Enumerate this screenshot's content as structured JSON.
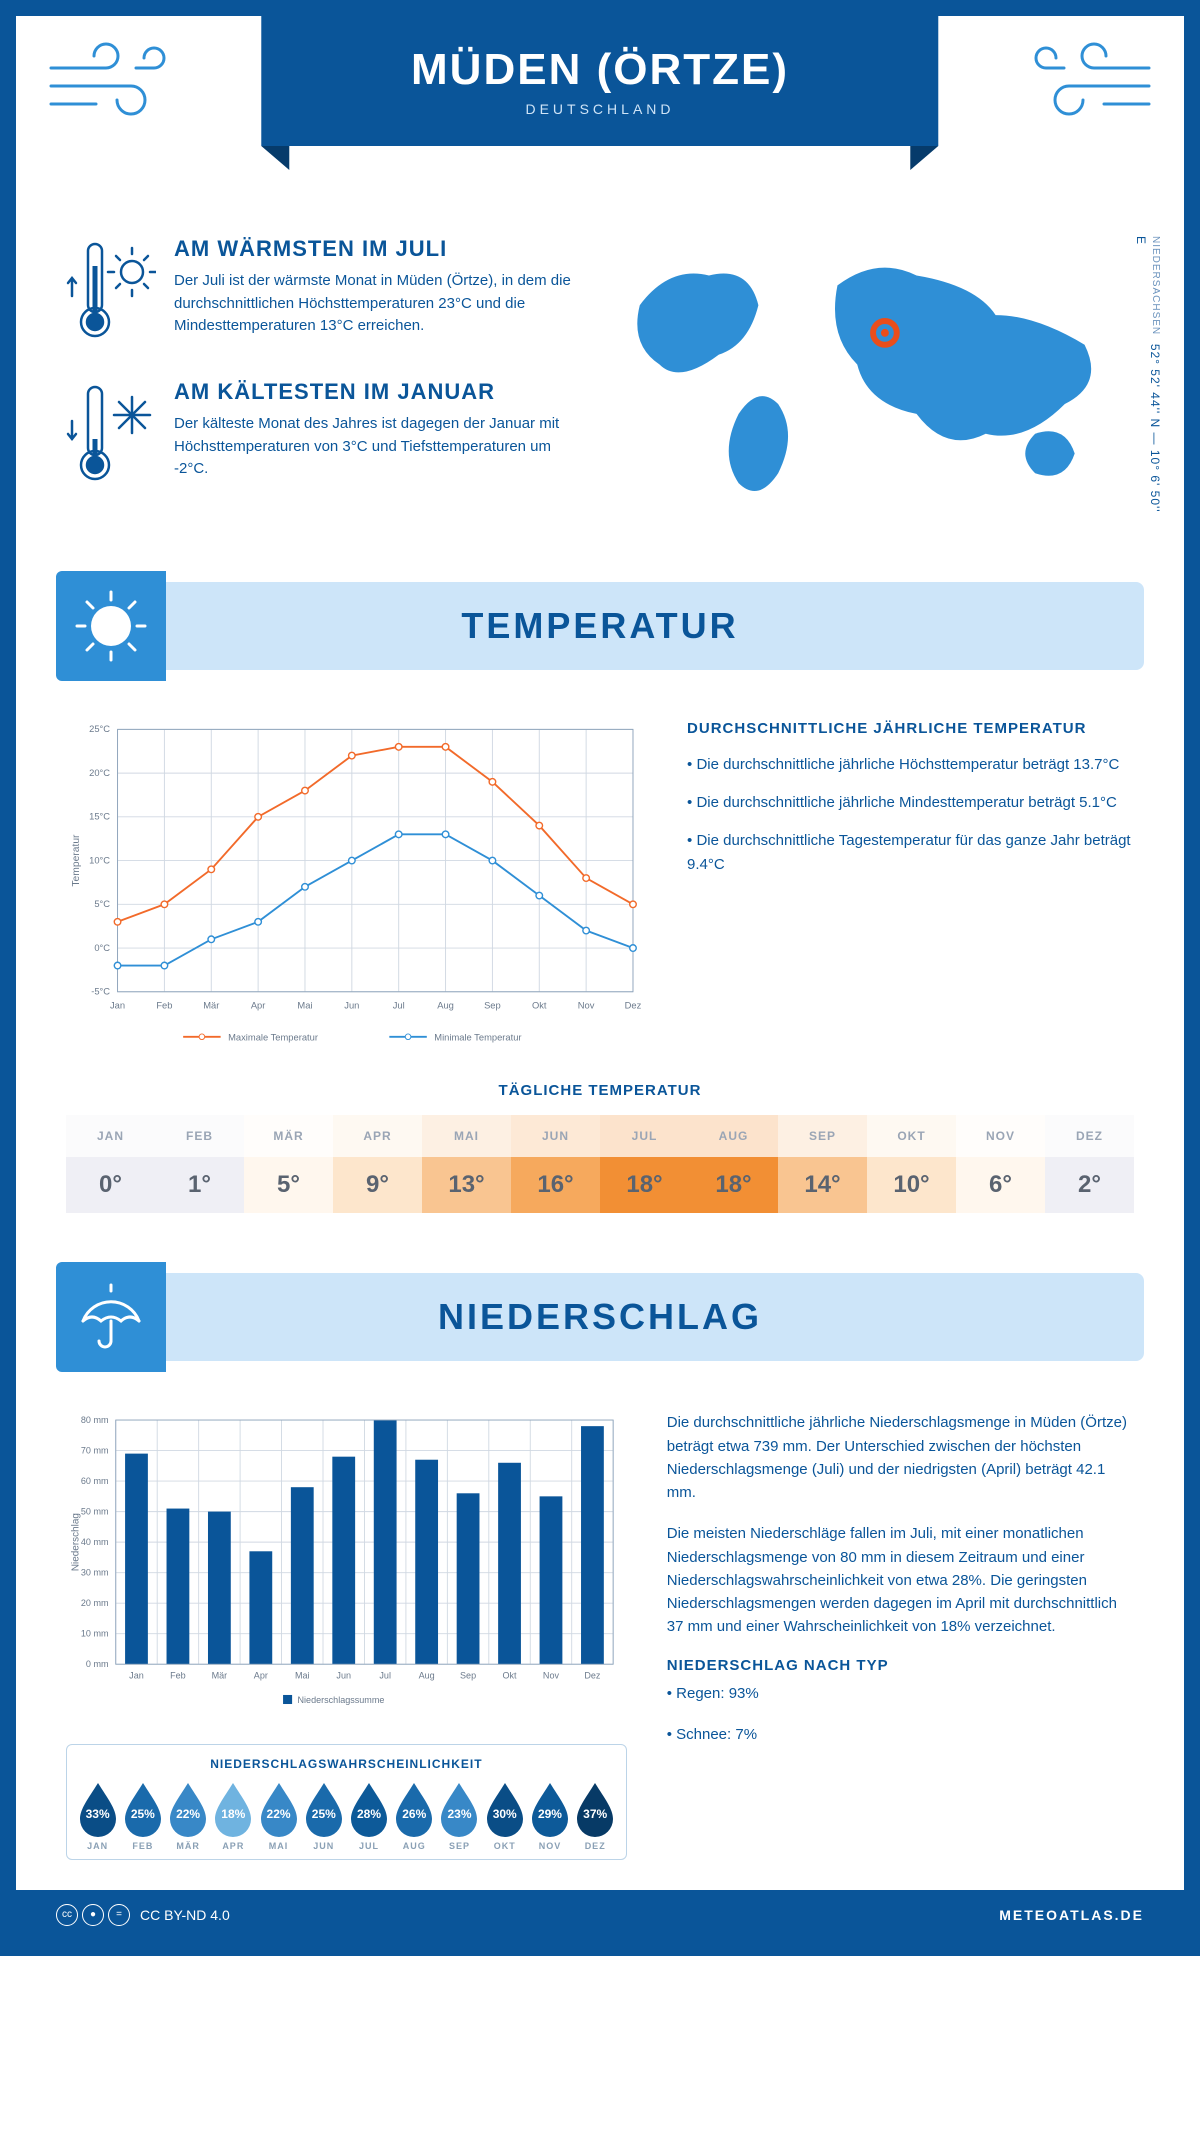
{
  "header": {
    "title": "MÜDEN (ÖRTZE)",
    "subtitle": "DEUTSCHLAND"
  },
  "location": {
    "coords": "52° 52' 44'' N — 10° 6' 50'' E",
    "region": "NIEDERSACHSEN",
    "marker_color": "#e94e1b",
    "land_color": "#2f8fd6"
  },
  "warmest": {
    "title": "AM WÄRMSTEN IM JULI",
    "text": "Der Juli ist der wärmste Monat in Müden (Örtze), in dem die durchschnittlichen Höchsttemperaturen 23°C und die Mindesttemperaturen 13°C erreichen."
  },
  "coldest": {
    "title": "AM KÄLTESTEN IM JANUAR",
    "text": "Der kälteste Monat des Jahres ist dagegen der Januar mit Höchsttemperaturen von 3°C und Tiefsttemperaturen um -2°C."
  },
  "temp_section": {
    "heading": "TEMPERATUR",
    "facts_title": "DURCHSCHNITTLICHE JÄHRLICHE TEMPERATUR",
    "fact1": "• Die durchschnittliche jährliche Höchsttemperatur beträgt 13.7°C",
    "fact2": "• Die durchschnittliche jährliche Mindesttemperatur beträgt 5.1°C",
    "fact3": "• Die durchschnittliche Tagestemperatur für das ganze Jahr beträgt 9.4°C"
  },
  "temp_chart": {
    "type": "line",
    "months": [
      "Jan",
      "Feb",
      "Mär",
      "Apr",
      "Mai",
      "Jun",
      "Jul",
      "Aug",
      "Sep",
      "Okt",
      "Nov",
      "Dez"
    ],
    "series_max": {
      "label": "Maximale Temperatur",
      "color": "#f26a2a",
      "values": [
        3,
        5,
        9,
        15,
        18,
        22,
        23,
        23,
        19,
        14,
        8,
        5
      ]
    },
    "series_min": {
      "label": "Minimale Temperatur",
      "color": "#2f8fd6",
      "values": [
        -2,
        -2,
        1,
        3,
        7,
        10,
        13,
        13,
        10,
        6,
        2,
        0
      ]
    },
    "ylabel": "Temperatur",
    "ylim": [
      -5,
      25
    ],
    "ytick_step": 5,
    "grid_color": "#d0d8e2",
    "background_color": "#ffffff",
    "line_width": 2,
    "marker": "circle",
    "marker_size": 3.5
  },
  "daily_temp": {
    "title": "TÄGLICHE TEMPERATUR",
    "months": [
      "JAN",
      "FEB",
      "MÄR",
      "APR",
      "MAI",
      "JUN",
      "JUL",
      "AUG",
      "SEP",
      "OKT",
      "NOV",
      "DEZ"
    ],
    "values": [
      "0°",
      "1°",
      "5°",
      "9°",
      "13°",
      "16°",
      "18°",
      "18°",
      "14°",
      "10°",
      "6°",
      "2°"
    ],
    "cell_colors": [
      "#efeff5",
      "#efeff5",
      "#fff7ee",
      "#fde6cc",
      "#f9c591",
      "#f6a95d",
      "#f28f34",
      "#f28f34",
      "#f9c591",
      "#fde6cc",
      "#fff7ee",
      "#efeff5"
    ]
  },
  "precip_section": {
    "heading": "NIEDERSCHLAG",
    "para1": "Die durchschnittliche jährliche Niederschlagsmenge in Müden (Örtze) beträgt etwa 739 mm. Der Unterschied zwischen der höchsten Niederschlagsmenge (Juli) und der niedrigsten (April) beträgt 42.1 mm.",
    "para2": "Die meisten Niederschläge fallen im Juli, mit einer monatlichen Niederschlagsmenge von 80 mm in diesem Zeitraum und einer Niederschlagswahrscheinlichkeit von etwa 28%. Die geringsten Niederschlagsmengen werden dagegen im April mit durchschnittlich 37 mm und einer Wahrscheinlichkeit von 18% verzeichnet.",
    "type_title": "NIEDERSCHLAG NACH TYP",
    "type1": "• Regen: 93%",
    "type2": "• Schnee: 7%"
  },
  "precip_chart": {
    "type": "bar",
    "months": [
      "Jan",
      "Feb",
      "Mär",
      "Apr",
      "Mai",
      "Jun",
      "Jul",
      "Aug",
      "Sep",
      "Okt",
      "Nov",
      "Dez"
    ],
    "values": [
      69,
      51,
      50,
      37,
      58,
      68,
      80,
      67,
      56,
      66,
      55,
      78
    ],
    "bar_color": "#0a5599",
    "ylabel": "Niederschlag",
    "legend": "Niederschlagssumme",
    "ylim": [
      0,
      80
    ],
    "ytick_step": 10,
    "grid_color": "#d0d8e2",
    "background_color": "#ffffff",
    "bar_width": 0.55
  },
  "precip_prob": {
    "title": "NIEDERSCHLAGSWAHRSCHEINLICHKEIT",
    "months": [
      "JAN",
      "FEB",
      "MÄR",
      "APR",
      "MAI",
      "JUN",
      "JUL",
      "AUG",
      "SEP",
      "OKT",
      "NOV",
      "DEZ"
    ],
    "values": [
      "33%",
      "25%",
      "22%",
      "18%",
      "22%",
      "25%",
      "28%",
      "26%",
      "23%",
      "30%",
      "29%",
      "37%"
    ],
    "colors": [
      "#0a4d86",
      "#1a6aab",
      "#3888c7",
      "#6fb3e0",
      "#3888c7",
      "#1a6aab",
      "#0d5a99",
      "#1a6aab",
      "#3888c7",
      "#0a4d86",
      "#0d5a99",
      "#073a66"
    ]
  },
  "footer": {
    "license": "CC BY-ND 4.0",
    "site": "METEOATLAS.DE"
  },
  "palette": {
    "brand": "#0a5599",
    "light_band": "#cde5f9",
    "mid_blue": "#2f8fd6"
  }
}
